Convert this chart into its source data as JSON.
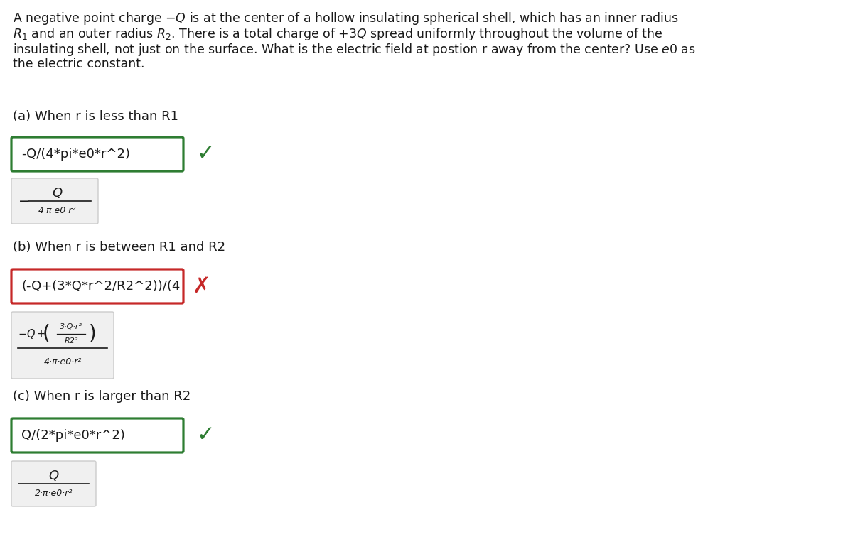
{
  "bg_color": "#ffffff",
  "text_color": "#1a1a1a",
  "part_a_label": "(a) When r is less than R1",
  "part_a_box_text": "-Q/(4*pi*e0*r^2)",
  "part_a_box_color": "#2e7d32",
  "part_a_check_color": "#2e7d32",
  "part_a_formula_num": "Q",
  "part_a_formula_den": "4·π·e0·r²",
  "part_a_formula_neg": "−",
  "part_b_label": "(b) When r is between R1 and R2",
  "part_b_box_text": "(-Q+(3*Q*r^2/R2^2))/(4",
  "part_b_box_color": "#c62828",
  "part_b_cross_color": "#c62828",
  "part_b_formula_num_frac_top": "3·Q·r²",
  "part_b_formula_num_frac_bot": "R2²",
  "part_b_formula_den": "4·π·e0·r²",
  "part_c_label": "(c) When r is larger than R2",
  "part_c_box_text": "Q/(2*pi*e0*r^2)",
  "part_c_box_color": "#2e7d32",
  "part_c_check_color": "#2e7d32",
  "part_c_formula_num": "Q",
  "part_c_formula_den": "2·π·e0·r²",
  "grey_box_color": "#f0f0f0",
  "grey_border_color": "#cccccc",
  "desc_line1": "A negative point charge $-Q$ is at the center of a hollow insulating spherical shell, which has an inner radius",
  "desc_line2": "$R_1$ and an outer radius $R_2$. There is a total charge of $+3Q$ spread uniformly throughout the volume of the",
  "desc_line3": "insulating shell, not just on the surface. What is the electric field at postion r away from the center? Use $e0$ as",
  "desc_line4": "the electric constant."
}
